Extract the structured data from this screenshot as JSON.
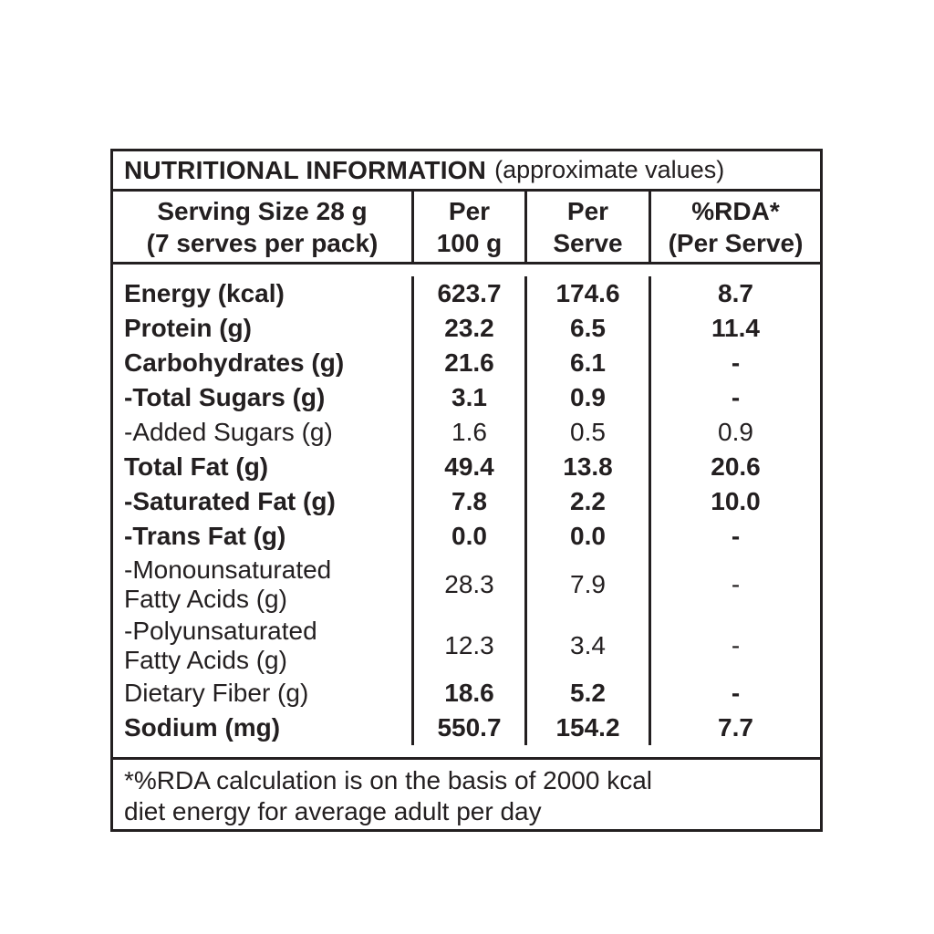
{
  "table": {
    "title_bold": "NUTRITIONAL INFORMATION",
    "title_regular": "(approximate values)",
    "columns": {
      "serving": "Serving Size 28 g\n(7 serves per pack)",
      "per_100g": "Per\n100 g",
      "per_serve": "Per\nServe",
      "rda": "%RDA*\n(Per Serve)"
    },
    "rows": [
      {
        "label": "Energy (kcal)",
        "per_100g": "623.7",
        "per_serve": "174.6",
        "rda": "8.7"
      },
      {
        "label": "Protein (g)",
        "per_100g": "23.2",
        "per_serve": "6.5",
        "rda": "11.4"
      },
      {
        "label": "Carbohydrates (g)",
        "per_100g": "21.6",
        "per_serve": "6.1",
        "rda": "-"
      },
      {
        "label": "-Total Sugars (g)",
        "per_100g": "3.1",
        "per_serve": "0.9",
        "rda": "-"
      },
      {
        "label": "-Added Sugars (g)",
        "per_100g": "1.6",
        "per_serve": "0.5",
        "rda": "0.9"
      },
      {
        "label": "Total Fat (g)",
        "per_100g": "49.4",
        "per_serve": "13.8",
        "rda": "20.6"
      },
      {
        "label": "-Saturated Fat (g)",
        "per_100g": "7.8",
        "per_serve": "2.2",
        "rda": "10.0"
      },
      {
        "label": "-Trans Fat (g)",
        "per_100g": "0.0",
        "per_serve": "0.0",
        "rda": "-"
      },
      {
        "label": "-Monounsaturated\nFatty Acids (g)",
        "per_100g": "28.3",
        "per_serve": "7.9",
        "rda": "-"
      },
      {
        "label": "-Polyunsaturated\nFatty Acids (g)",
        "per_100g": "12.3",
        "per_serve": "3.4",
        "rda": "-"
      },
      {
        "label": "Dietary Fiber (g)",
        "per_100g": "18.6",
        "per_serve": "5.2",
        "rda": "-"
      },
      {
        "label": "Sodium (mg)",
        "per_100g": "550.7",
        "per_serve": "154.2",
        "rda": "7.7"
      }
    ],
    "footnote": "*%RDA calculation is on the basis of 2000 kcal\ndiet energy for average adult per day"
  }
}
